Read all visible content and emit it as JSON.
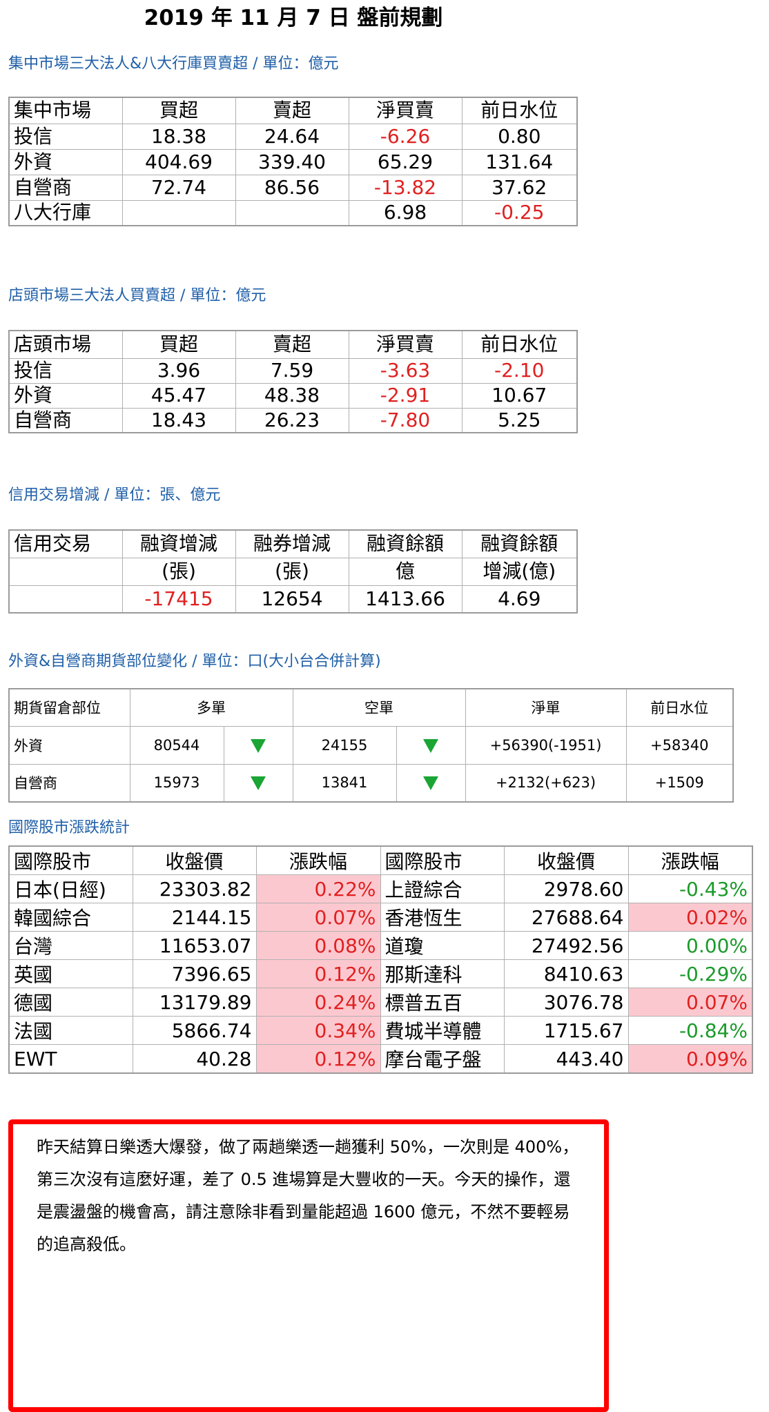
{
  "title": "2019 年 11 月 7 日  盤前規劃",
  "sec1": {
    "label": "集中市場三大法人&八大行庫買賣超 / 單位：億元",
    "headers": [
      "集中市場",
      "買超",
      "賣超",
      "淨買賣",
      "前日水位"
    ],
    "rows": [
      [
        "投信",
        "18.38",
        "24.64",
        "-6.26",
        "0.80"
      ],
      [
        "外資",
        "404.69",
        "339.40",
        "65.29",
        "131.64"
      ],
      [
        "自營商",
        "72.74",
        "86.56",
        "-13.82",
        "37.62"
      ],
      [
        "八大行庫",
        "",
        "",
        "6.98",
        "-0.25"
      ]
    ]
  },
  "sec2": {
    "label": "店頭市場三大法人買賣超 / 單位：億元",
    "headers": [
      "店頭市場",
      "買超",
      "賣超",
      "淨買賣",
      "前日水位"
    ],
    "rows": [
      [
        "投信",
        "3.96",
        "7.59",
        "-3.63",
        "-2.10"
      ],
      [
        "外資",
        "45.47",
        "48.38",
        "-2.91",
        "10.67"
      ],
      [
        "自營商",
        "18.43",
        "26.23",
        "-7.80",
        "5.25"
      ]
    ]
  },
  "sec3": {
    "label": "信用交易增減 / 單位：張、億元",
    "headers": [
      "信用交易",
      "融資增減",
      "融券增減",
      "融資餘額",
      "融資餘額"
    ],
    "subheaders": [
      "",
      "(張)",
      "(張)",
      "億",
      "增減(億)"
    ],
    "values": [
      "",
      "-17415",
      "12654",
      "1413.66",
      "4.69"
    ]
  },
  "sec4": {
    "label": "外資&自營商期貨部位變化 / 單位：口(大小台合併計算)",
    "headers": [
      "期貨留倉部位",
      "多單",
      "空單",
      "淨單",
      "前日水位"
    ],
    "rows": [
      {
        "name": "外資",
        "long": "80544",
        "long_dir": "down-triangle-icon",
        "short": "24155",
        "short_dir": "down-triangle-icon",
        "net": "+56390(-1951)",
        "prev": "+58340"
      },
      {
        "name": "自營商",
        "long": "15973",
        "long_dir": "down-triangle-icon",
        "short": "13841",
        "short_dir": "down-triangle-icon",
        "net": "+2132(+623)",
        "prev": "+1509"
      }
    ]
  },
  "sec5": {
    "label": "國際股市漲跌統計",
    "headers": [
      "國際股市",
      "收盤價",
      "漲跌幅",
      "國際股市",
      "收盤價",
      "漲跌幅"
    ],
    "rows": [
      [
        "日本(日經)",
        "23303.82",
        "0.22%",
        "上證綜合",
        "2978.60",
        "-0.43%"
      ],
      [
        "韓國綜合",
        "2144.15",
        "0.07%",
        "香港恆生",
        "27688.64",
        "0.02%"
      ],
      [
        "台灣",
        "11653.07",
        "0.08%",
        "道瓊",
        "27492.56",
        "0.00%"
      ],
      [
        "英國",
        "7396.65",
        "0.12%",
        "那斯達科",
        "8410.63",
        "-0.29%"
      ],
      [
        "德國",
        "13179.89",
        "0.24%",
        "標普五百",
        "3076.78",
        "0.07%"
      ],
      [
        "法國",
        "5866.74",
        "0.34%",
        "費城半導體",
        "1715.67",
        "-0.84%"
      ],
      [
        "EWT",
        "40.28",
        "0.12%",
        "摩台電子盤",
        "443.40",
        "0.09%"
      ]
    ]
  },
  "note": {
    "lines": [
      "昨天結算日樂透大爆發，做了兩趟樂透一趟獲利 50%，一次則是 400%，",
      "第三次沒有這麼好運，差了 0.5 進場算是大豐收的一天。今天的操作，還",
      "是震盪盤的機會高，請注意除非看到量能超過 1600 億元，不然不要輕易",
      "的追高殺低。"
    ]
  },
  "colors": {
    "negative": "#e02020",
    "positive": "#1a9a2a",
    "up_bg": "#fcc8cf",
    "label": "#1f5fa8",
    "frame": "#ff0000",
    "arrow": "#1aa534"
  }
}
